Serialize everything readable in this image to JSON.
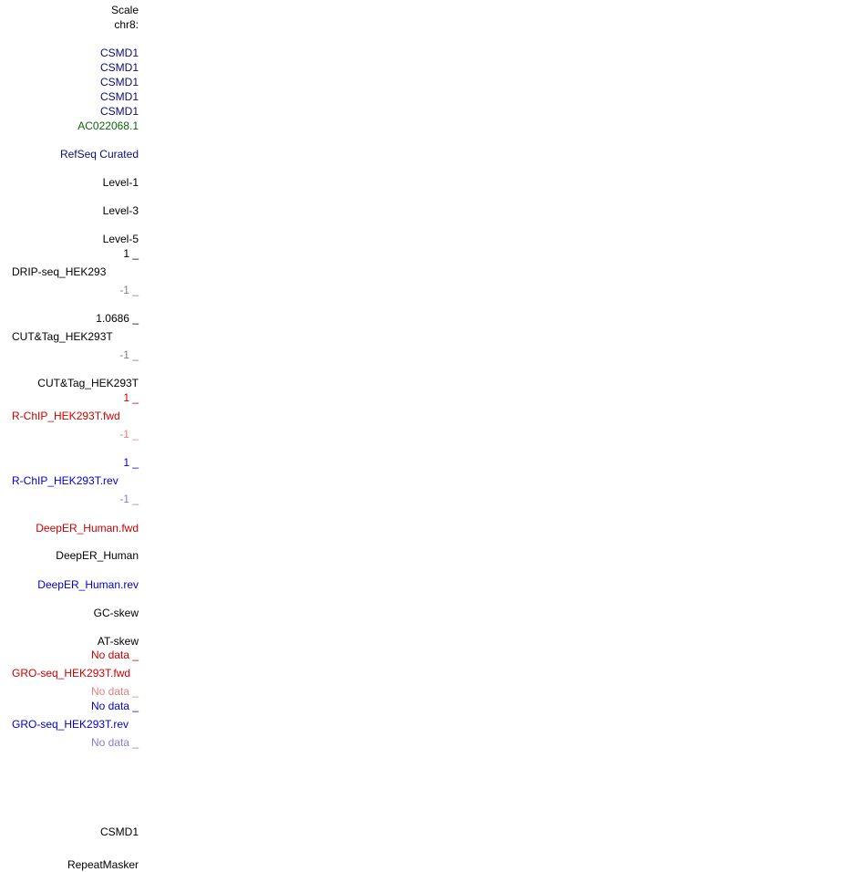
{
  "colors": {
    "black": "#000000",
    "navy": "#0c0c78",
    "green": "#0c640c",
    "blue": "#0000d2",
    "red": "#cc0000",
    "gray": "#7f7f7f",
    "pink": "#e57f7f",
    "light_blue": "#7f7fe5"
  },
  "labels": {
    "scale": "Scale",
    "chrom": "chr8:",
    "genes": [
      "CSMD1",
      "CSMD1",
      "CSMD1",
      "CSMD1",
      "CSMD1"
    ],
    "lncrna": "AC022068.1",
    "refseq": "RefSeq Curated",
    "level1": "Level-1",
    "level3": "Level-3",
    "level5": "Level-5",
    "drip_max": "1 _",
    "drip_name": "DRIP-seq_HEK293",
    "drip_min": "-1 _",
    "cut_max": "1.0686 _",
    "cut_name": "CUT&Tag_HEK293T",
    "cut_min": "-1 _",
    "cut_name2": "CUT&Tag_HEK293T",
    "rchip_fwd_max": "1 _",
    "rchip_fwd_name": "R-ChIP_HEK293T.fwd",
    "rchip_fwd_min": "-1 _",
    "rchip_rev_max": "1 _",
    "rchip_rev_name": "R-ChIP_HEK293T.rev",
    "rchip_rev_min": "-1 _",
    "deeper_fwd": "DeepER_Human.fwd",
    "deeper": "DeepER_Human",
    "deeper_rev": "DeepER_Human.rev",
    "gc_skew": "GC-skew",
    "at_skew": "AT-skew",
    "gro_fwd_top": "No data _",
    "gro_fwd_name": "GRO-seq_HEK293T.fwd",
    "gro_fwd_bottom": "No data _",
    "gro_rev_top": "No data _",
    "gro_rev_name": "GRO-seq_HEK293T.rev",
    "gro_rev_bottom": "No data _",
    "csmd1_bottom": "CSMD1",
    "repeatmasker": "RepeatMasker"
  }
}
